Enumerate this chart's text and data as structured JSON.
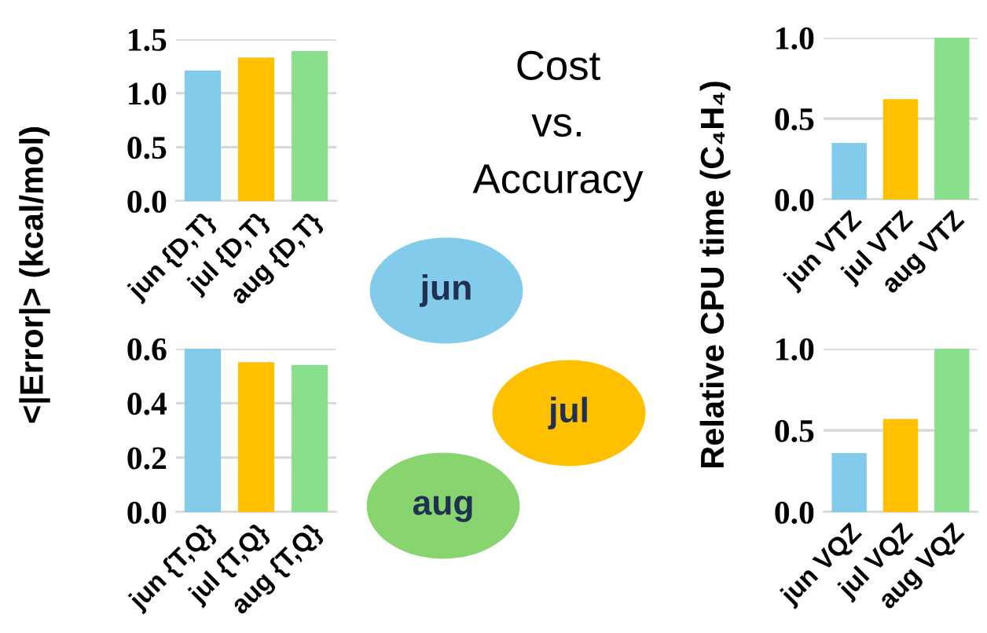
{
  "chart_data": [
    {
      "type": "bar",
      "ylabel": "<|Error|> (kcal/mol)",
      "categories": [
        "jun {D,T}",
        "jul {D,T}",
        "aug {D,T}"
      ],
      "values": [
        1.21,
        1.33,
        1.39
      ],
      "colors": [
        "#83cbeb",
        "#ffc000",
        "#88df8c"
      ],
      "ylim": [
        0,
        1.5
      ],
      "yticks": [
        {
          "value": 0,
          "label": "0.0"
        },
        {
          "value": 0.5,
          "label": "0.5"
        },
        {
          "value": 1,
          "label": "1.0"
        },
        {
          "value": 1.5,
          "label": "1.5"
        }
      ],
      "grid": "y"
    },
    {
      "type": "other",
      "title": "Cost\nvs.\nAccuracy",
      "annotations": [
        "jun",
        "jul",
        "aug"
      ]
    },
    {
      "type": "bar",
      "ylabel": "Relative CPU time (C₄H₄)",
      "categories": [
        "jun VTZ",
        "jul VTZ",
        "aug VTZ"
      ],
      "values": [
        0.35,
        0.62,
        1.0
      ],
      "colors": [
        "#83cbeb",
        "#ffc000",
        "#88df8c"
      ],
      "ylim": [
        0,
        1.0
      ],
      "yticks": [
        {
          "value": 0,
          "label": "0.0"
        },
        {
          "value": 0.5,
          "label": "0.5"
        },
        {
          "value": 1,
          "label": "1.0"
        }
      ],
      "grid": "y"
    },
    {
      "type": "bar",
      "categories": [
        "jun {T,Q}",
        "jul {T,Q}",
        "aug {T,Q}"
      ],
      "values": [
        0.6,
        0.55,
        0.54
      ],
      "colors": [
        "#83cbeb",
        "#ffc000",
        "#88df8c"
      ],
      "ylim": [
        0,
        0.6
      ],
      "yticks": [
        {
          "value": 0,
          "label": "0.0"
        },
        {
          "value": 0.2,
          "label": "0.2"
        },
        {
          "value": 0.4,
          "label": "0.4"
        },
        {
          "value": 0.6,
          "label": "0.6"
        }
      ],
      "grid": "y"
    },
    {
      "type": "bar",
      "categories": [
        "jun VQZ",
        "jul VQZ",
        "aug VQZ"
      ],
      "values": [
        0.36,
        0.57,
        1.0
      ],
      "colors": [
        "#83cbeb",
        "#ffc000",
        "#88df8c"
      ],
      "ylim": [
        0,
        1.0
      ],
      "yticks": [
        {
          "value": 0,
          "label": "0.0"
        },
        {
          "value": 0.5,
          "label": "0.5"
        },
        {
          "value": 1,
          "label": "1.0"
        }
      ],
      "grid": "y"
    }
  ]
}
